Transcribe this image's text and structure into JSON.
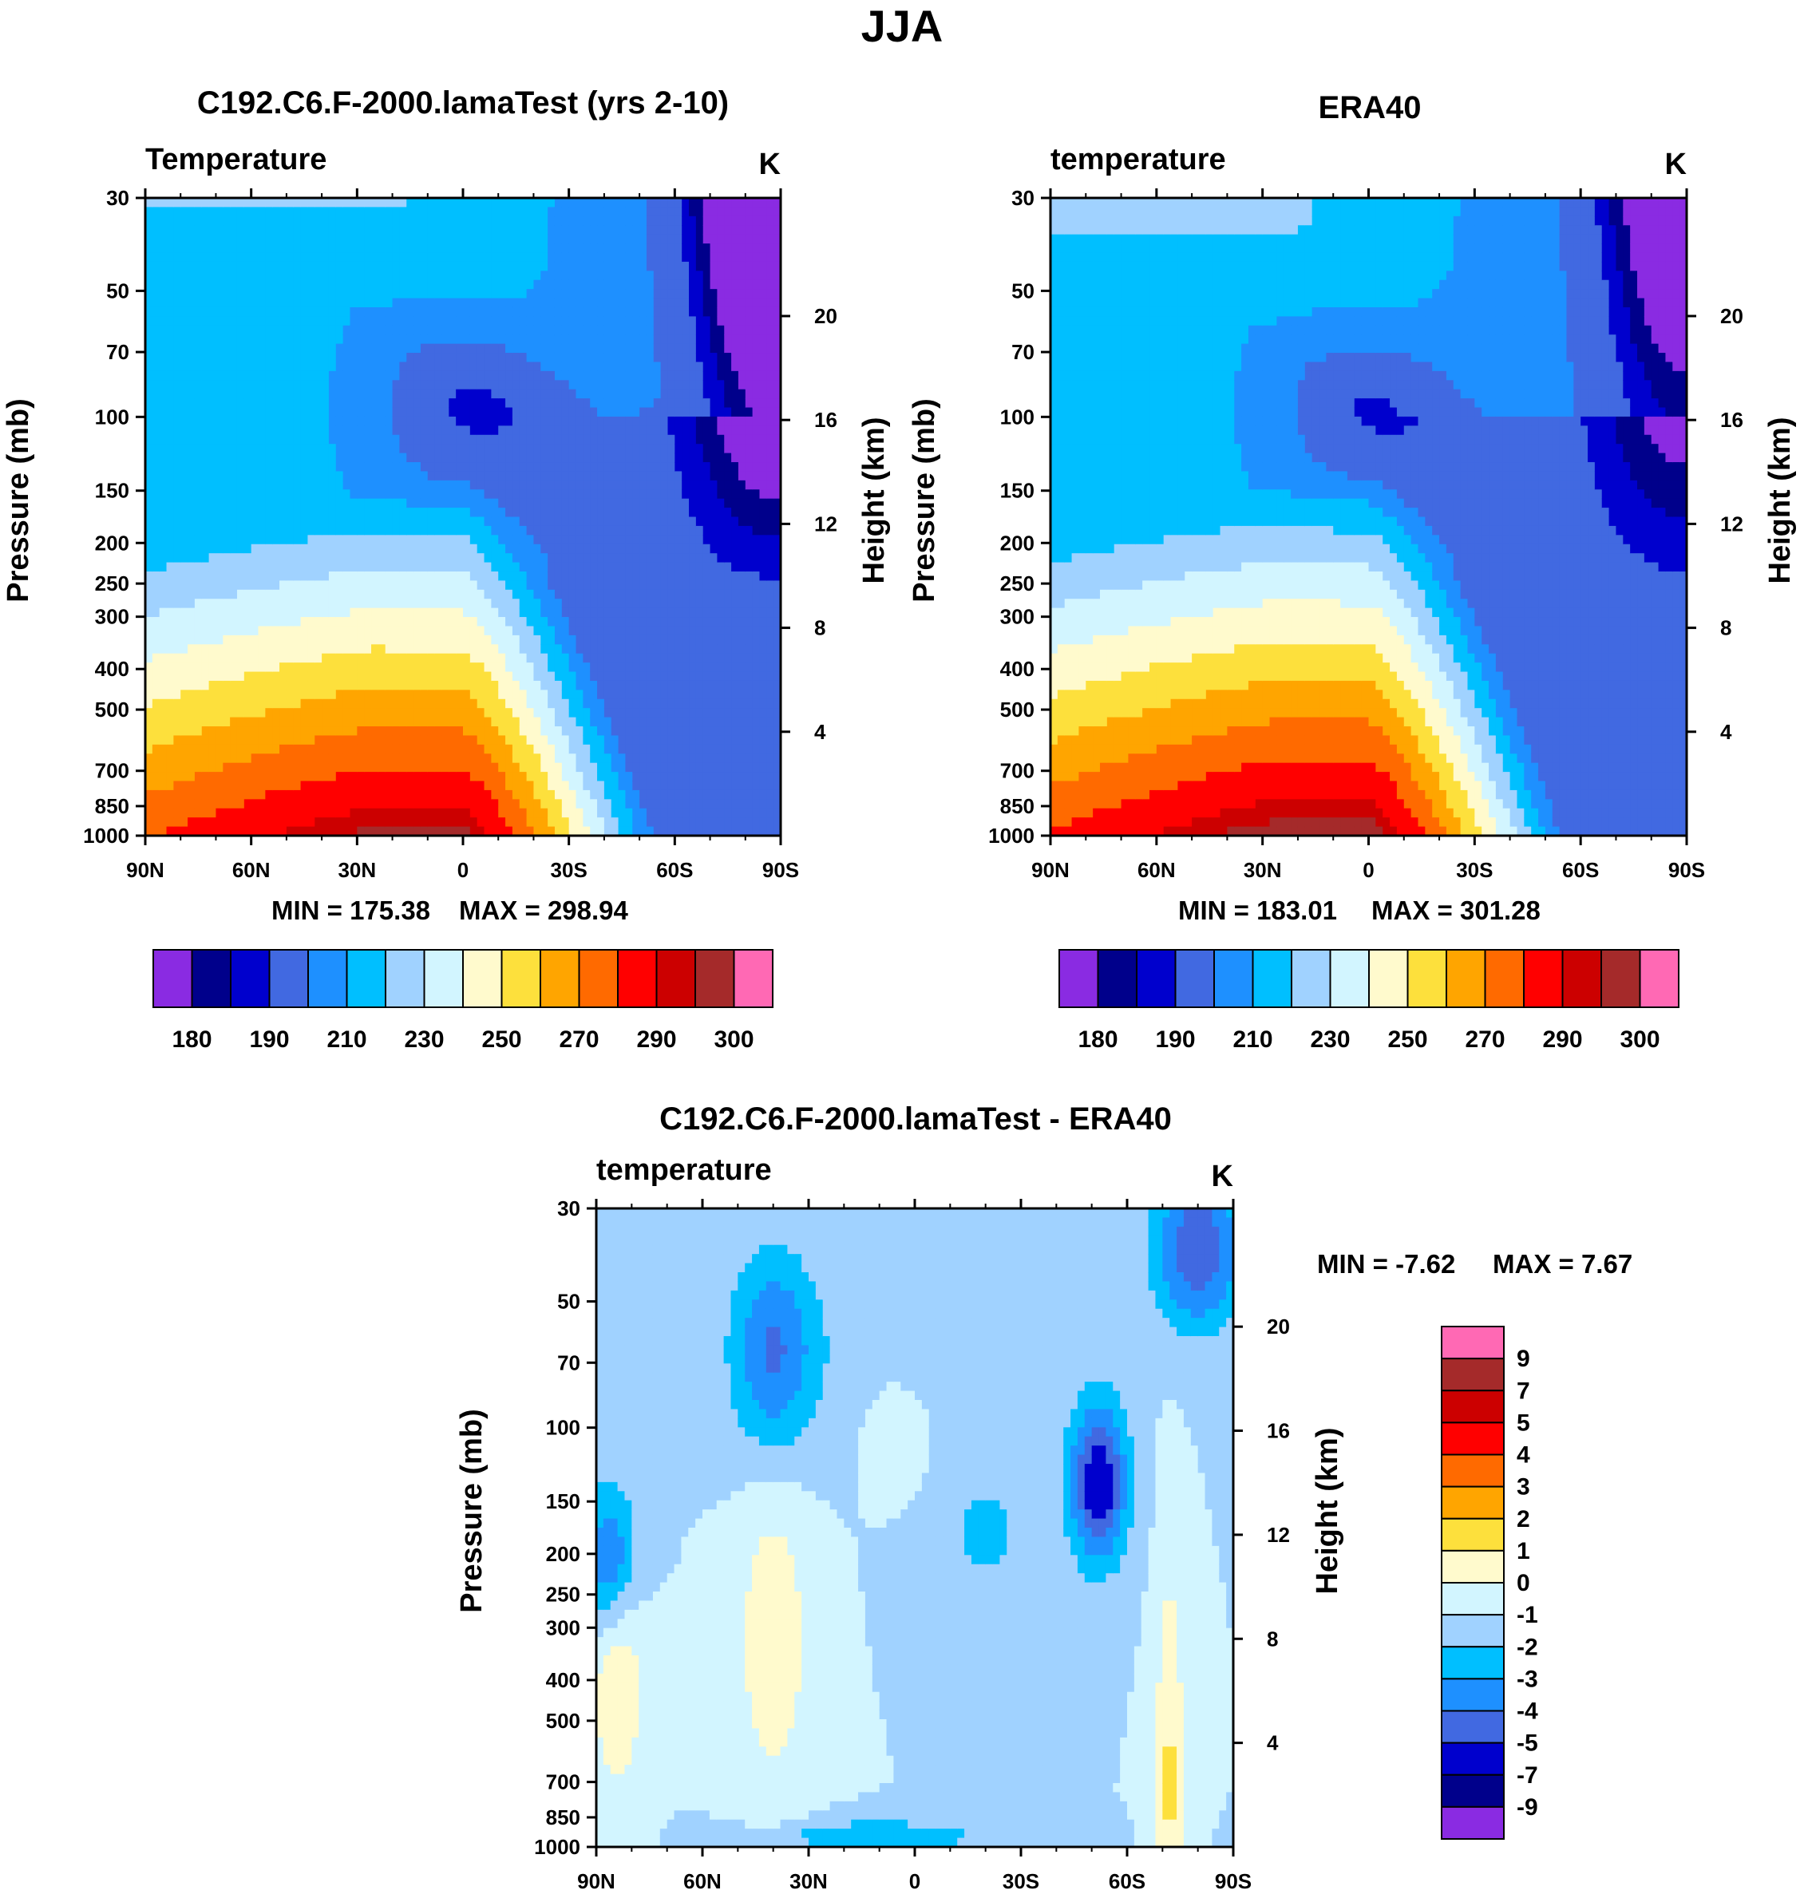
{
  "figure_title": "JJA",
  "colors": {
    "abs_palette": [
      "#8a2be2",
      "#00008b",
      "#0000cd",
      "#4169e1",
      "#1e90ff",
      "#00bfff",
      "#a0d2ff",
      "#d2f5ff",
      "#fffacd",
      "#fde03c",
      "#ffa500",
      "#ff6a00",
      "#ff0000",
      "#cc0000",
      "#a52a2a",
      "#ff69b4"
    ],
    "diff_palette": [
      "#8a2be2",
      "#00008b",
      "#0000cd",
      "#4169e1",
      "#1e90ff",
      "#00bfff",
      "#a0d2ff",
      "#d2f5ff",
      "#fffacd",
      "#fde03c",
      "#ffa500",
      "#ff6a00",
      "#ff0000",
      "#cc0000",
      "#a52a2a",
      "#ff69b4"
    ]
  },
  "chart_data": [
    {
      "type": "heatmap",
      "id": "model",
      "title": "C192.C6.F-2000.lamaTest (yrs 2-10)",
      "subtitle_left": "Temperature",
      "subtitle_right": "K",
      "xlabel": "",
      "ylabel": "Pressure (mb)",
      "ylabel_right": "Height (km)",
      "x_ticks": [
        "90N",
        "60N",
        "30N",
        "0",
        "30S",
        "60S",
        "90S"
      ],
      "x_range": [
        90,
        -90
      ],
      "y_ticks": [
        30,
        50,
        70,
        100,
        150,
        200,
        250,
        300,
        400,
        500,
        700,
        850,
        1000
      ],
      "y_range": [
        30,
        1000
      ],
      "height_ticks": [
        20,
        16,
        12,
        8,
        4
      ],
      "min_label": "MIN = 175.38",
      "max_label": "MAX = 298.94",
      "contour_levels": [
        180,
        185,
        190,
        200,
        210,
        220,
        230,
        240,
        250,
        260,
        270,
        280,
        290,
        295,
        300
      ],
      "colorbar_labels": [
        "180",
        "190",
        "210",
        "230",
        "250",
        "270",
        "290",
        "300"
      ]
    },
    {
      "type": "heatmap",
      "id": "obs",
      "title": "ERA40",
      "subtitle_left": "temperature",
      "subtitle_right": "K",
      "xlabel": "",
      "ylabel": "Pressure (mb)",
      "ylabel_right": "Height (km)",
      "x_ticks": [
        "90N",
        "60N",
        "30N",
        "0",
        "30S",
        "60S",
        "90S"
      ],
      "x_range": [
        90,
        -90
      ],
      "y_ticks": [
        30,
        50,
        70,
        100,
        150,
        200,
        250,
        300,
        400,
        500,
        700,
        850,
        1000
      ],
      "y_range": [
        30,
        1000
      ],
      "height_ticks": [
        20,
        16,
        12,
        8,
        4
      ],
      "min_label": "MIN = 183.01",
      "max_label": "MAX = 301.28",
      "contour_levels": [
        180,
        185,
        190,
        200,
        210,
        220,
        230,
        240,
        250,
        260,
        270,
        280,
        290,
        295,
        300
      ],
      "colorbar_labels": [
        "180",
        "190",
        "210",
        "230",
        "250",
        "270",
        "290",
        "300"
      ]
    },
    {
      "type": "heatmap",
      "id": "diff",
      "title": "C192.C6.F-2000.lamaTest - ERA40",
      "subtitle_left": "temperature",
      "subtitle_right": "K",
      "xlabel": "",
      "ylabel": "Pressure (mb)",
      "ylabel_right": "Height (km)",
      "x_ticks": [
        "90N",
        "60N",
        "30N",
        "0",
        "30S",
        "60S",
        "90S"
      ],
      "x_range": [
        90,
        -90
      ],
      "y_ticks": [
        30,
        50,
        70,
        100,
        150,
        200,
        250,
        300,
        400,
        500,
        700,
        850,
        1000
      ],
      "y_range": [
        30,
        1000
      ],
      "height_ticks": [
        20,
        16,
        12,
        8,
        4
      ],
      "min_label": "MIN =  -7.62",
      "max_label": "MAX =   7.67",
      "contour_levels": [
        -9,
        -7,
        -5,
        -4,
        -3,
        -2,
        -1,
        0,
        1,
        2,
        3,
        4,
        5,
        7,
        9
      ],
      "colorbar_labels": [
        "9",
        "7",
        "5",
        "4",
        "3",
        "2",
        "1",
        "0",
        "-1",
        "-2",
        "-3",
        "-4",
        "-5",
        "-7",
        "-9"
      ]
    }
  ]
}
